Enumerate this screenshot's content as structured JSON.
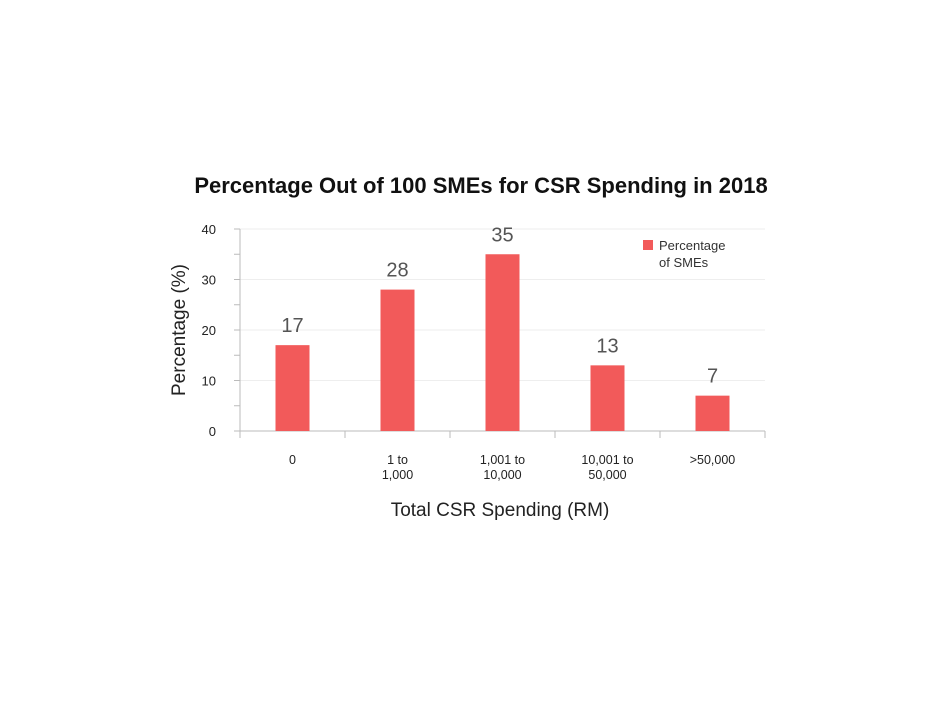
{
  "chart_data": {
    "type": "bar",
    "title": "Percentage Out of 100 SMEs for CSR Spending in 2018",
    "xlabel": "Total CSR Spending (RM)",
    "ylabel": "Percentage (%)",
    "categories": [
      [
        "0"
      ],
      [
        "1 to",
        "1,000"
      ],
      [
        "1,001 to",
        "10,000"
      ],
      [
        "10,001 to",
        "50,000"
      ],
      [
        ">50,000"
      ]
    ],
    "series": [
      {
        "name": "Percentage of SMEs",
        "legend_lines": [
          "Percentage",
          "of SMEs"
        ],
        "values": [
          17,
          28,
          35,
          13,
          7
        ]
      }
    ],
    "ylim": [
      0,
      40
    ],
    "yticks": [
      0,
      10,
      20,
      30,
      40
    ],
    "grid": true,
    "legend": "top-right",
    "bar_color": "#f25a5a"
  }
}
